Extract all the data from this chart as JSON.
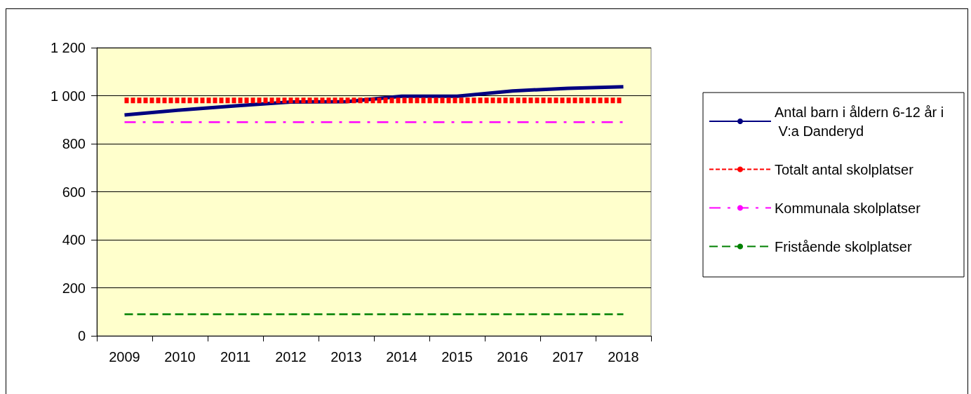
{
  "chart_data": {
    "type": "line",
    "categories": [
      "2009",
      "2010",
      "2011",
      "2012",
      "2013",
      "2014",
      "2015",
      "2016",
      "2017",
      "2018"
    ],
    "series": [
      {
        "name": "Antal barn i åldern 6-12 år i V:a Danderyd",
        "color": "#000080",
        "line_style": "solid",
        "values": [
          920,
          940,
          958,
          974,
          975,
          998,
          998,
          1020,
          1031,
          1037
        ]
      },
      {
        "name": "Totalt antal skolplatser",
        "color": "#ff0000",
        "line_style": "dashed",
        "values": [
          980,
          980,
          980,
          980,
          980,
          980,
          980,
          980,
          980,
          980
        ]
      },
      {
        "name": "Kommunala skolplatser",
        "color": "#ff00ff",
        "line_style": "dashdot",
        "values": [
          890,
          890,
          890,
          890,
          890,
          890,
          890,
          890,
          890,
          890
        ]
      },
      {
        "name": "Fristående skolplatser",
        "color": "#008000",
        "line_style": "dashed",
        "values": [
          90,
          90,
          90,
          90,
          90,
          90,
          90,
          90,
          90,
          90
        ]
      }
    ],
    "ylim": [
      0,
      1200
    ],
    "yticks": [
      0,
      200,
      400,
      600,
      800,
      1000,
      1200
    ],
    "grid": "y",
    "legend": "right",
    "marker": "none"
  }
}
